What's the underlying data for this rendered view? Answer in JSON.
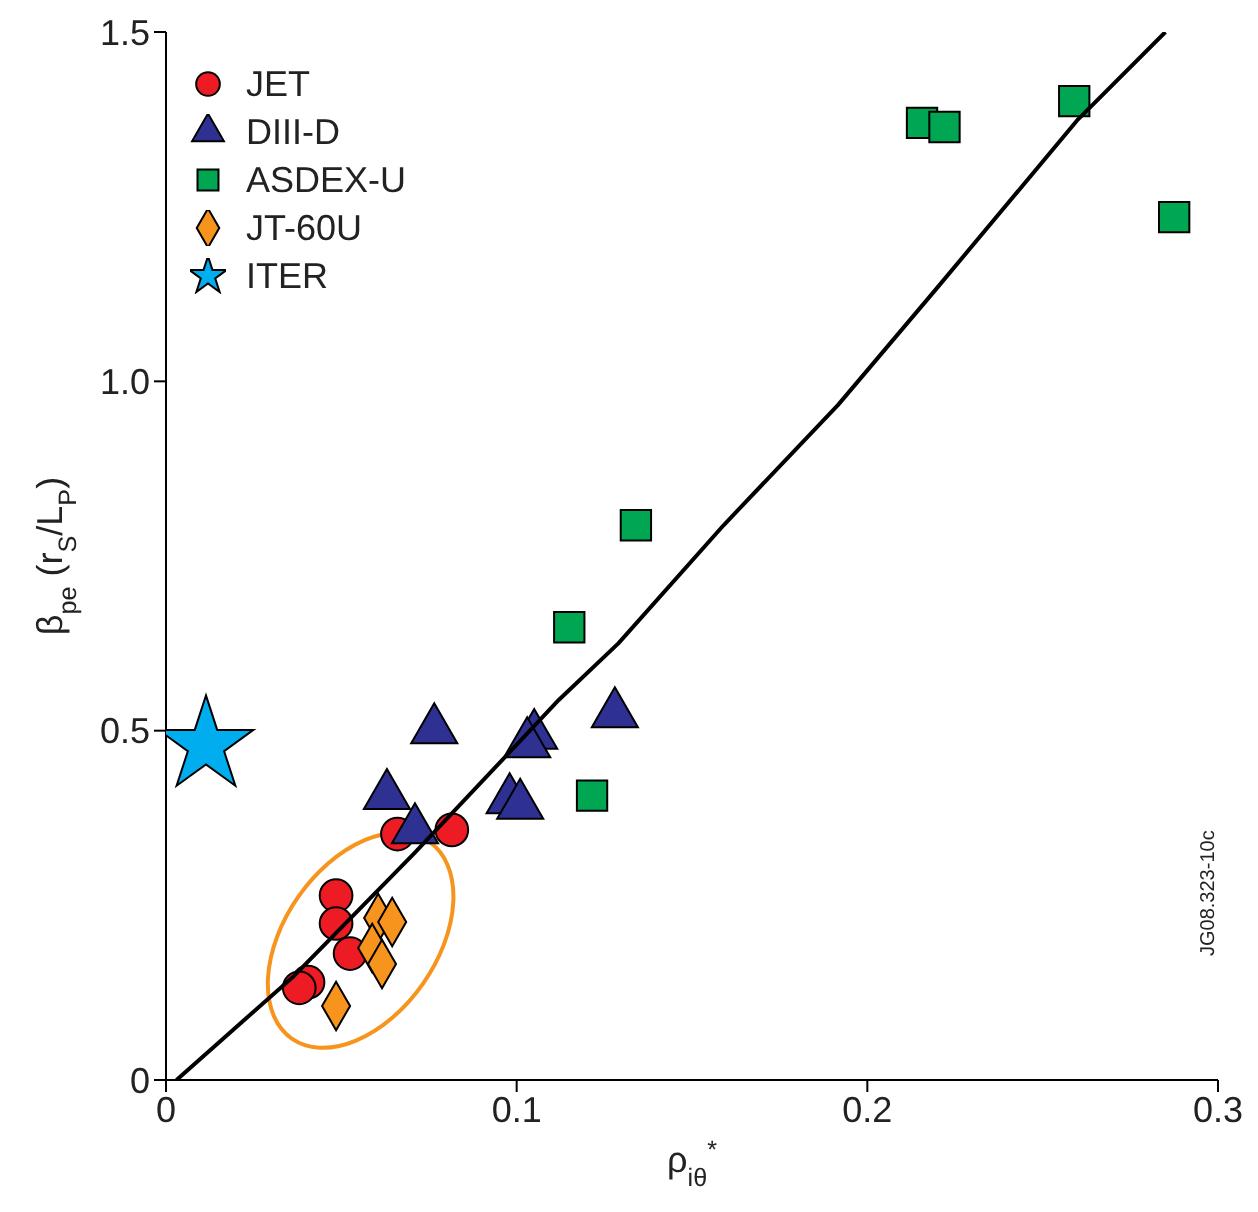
{
  "chart_data": {
    "type": "scatter",
    "xlabel": "ρ$_{iθ}$$^{*}$",
    "ylabel": "β$_{pe}$ (r$_{S}$/L$_{P}$)",
    "xlim": [
      0,
      0.3
    ],
    "xticks": [
      0,
      0.1,
      0.2,
      0.3
    ],
    "ylim": [
      0,
      1.5
    ],
    "yticks": [
      0,
      0.5,
      {
        "value": 1,
        "label": "1.0"
      },
      1.5
    ],
    "legend": "top left",
    "annotations": [
      "JG08.323-10c"
    ],
    "series": [
      {
        "name": "JET",
        "color": "#ed1c24",
        "marker": "circle",
        "x": [
          0.0485,
          0.0485,
          0.0525,
          0.0405,
          0.038,
          0.066,
          0.0815
        ],
        "values": [
          0.264,
          0.224,
          0.181,
          0.14,
          0.132,
          0.352,
          0.358
        ]
      },
      {
        "name": "DIII-D",
        "color": "#2e3192",
        "marker": "triangle",
        "x": [
          0.0765,
          0.063,
          0.071,
          0.105,
          0.103,
          0.098,
          0.101,
          0.128
        ],
        "values": [
          0.501,
          0.407,
          0.358,
          0.493,
          0.481,
          0.401,
          0.393,
          0.524
        ]
      },
      {
        "name": "ASDEX-U",
        "color": "#00a651",
        "marker": "square",
        "x": [
          0.2156,
          0.222,
          0.259,
          0.2875,
          0.134,
          0.115,
          0.1215
        ],
        "values": [
          1.37,
          1.364,
          1.401,
          1.235,
          0.794,
          0.648,
          0.407
        ]
      },
      {
        "name": "JT-60U",
        "color": "#f7941d",
        "marker": "diamond",
        "x": [
          0.0605,
          0.0645,
          0.0588,
          0.0616,
          0.0485
        ],
        "values": [
          0.232,
          0.226,
          0.189,
          0.166,
          0.106
        ]
      },
      {
        "name": "ITER",
        "color": "#00aeef",
        "marker": "star",
        "x": [
          0.0114
        ],
        "values": [
          0.479
        ]
      },
      {
        "type": "line",
        "color": "#000000",
        "marker": "none",
        "x": [
          0.003,
          0.0365,
          0.0707,
          0.097,
          0.112,
          0.129,
          0.159,
          0.1916,
          0.2196,
          0.2601,
          0.285
        ],
        "values": [
          0,
          0.149,
          0.324,
          0.464,
          0.544,
          0.625,
          0.794,
          0.966,
          1.132,
          1.375,
          1.5
        ]
      }
    ]
  }
}
